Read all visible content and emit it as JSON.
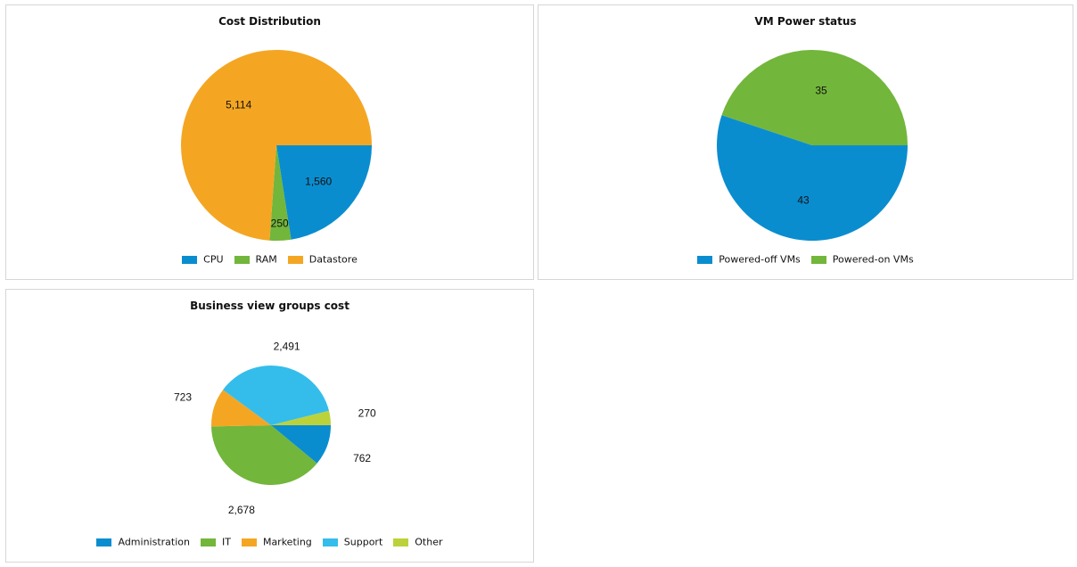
{
  "chart_data": [
    {
      "type": "pie",
      "title": "Cost Distribution",
      "categories": [
        "CPU",
        "RAM",
        "Datastore"
      ],
      "values": [
        1560,
        250,
        5114
      ],
      "value_labels": [
        "1,560",
        "250",
        "5,114"
      ],
      "colors": [
        "#0a8dcf",
        "#72b63b",
        "#f4a623"
      ],
      "legend_position": "bottom"
    },
    {
      "type": "pie",
      "title": "VM Power status",
      "categories": [
        "Powered-off VMs",
        "Powered-on VMs"
      ],
      "values": [
        43,
        35
      ],
      "value_labels": [
        "43",
        "35"
      ],
      "colors": [
        "#0a8dcf",
        "#72b63b"
      ],
      "legend_position": "bottom"
    },
    {
      "type": "pie",
      "title": "Business view groups cost",
      "categories": [
        "Administration",
        "IT",
        "Marketing",
        "Support",
        "Other"
      ],
      "values": [
        762,
        2678,
        723,
        2491,
        270
      ],
      "value_labels": [
        "762",
        "2,678",
        "723",
        "2,491",
        "270"
      ],
      "colors": [
        "#0a8dcf",
        "#72b63b",
        "#f4a623",
        "#34bdeb",
        "#bcd23b"
      ],
      "legend_position": "bottom"
    }
  ]
}
